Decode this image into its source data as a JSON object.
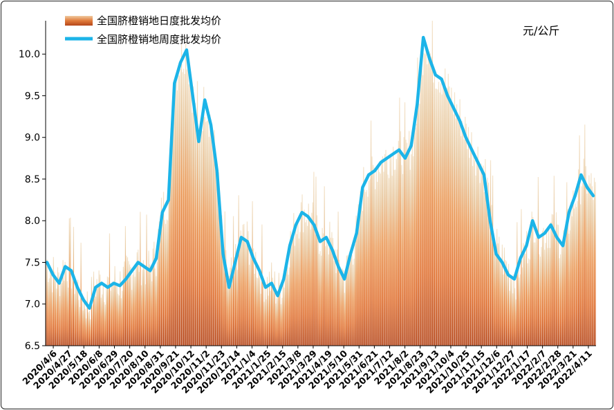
{
  "chart_data": {
    "type": "bar+line",
    "unit_label": "元/公斤",
    "ylim": [
      6.5,
      10.4
    ],
    "yticks": [
      "6.5",
      "7.0",
      "7.5",
      "8.0",
      "8.5",
      "9.0",
      "9.5",
      "10.0"
    ],
    "grid": false,
    "legend_position": "top-left",
    "series": [
      {
        "name": "全国脐橙销地日度批发均价",
        "kind": "bar",
        "color": "#d2691e"
      },
      {
        "name": "全国脐橙销地周度批发均价",
        "kind": "line",
        "color": "#1cb4e8"
      }
    ],
    "x_tick_labels": [
      "2020/4/6",
      "2020/4/27",
      "2020/5/18",
      "2020/6/8",
      "2020/6/29",
      "2020/7/20",
      "2020/8/10",
      "2020/8/31",
      "2020/9/21",
      "2020/10/12",
      "2020/11/2",
      "2020/11/23",
      "2020/12/14",
      "2021/1/4",
      "2021/1/25",
      "2021/2/15",
      "2021/3/8",
      "2021/3/29",
      "2021/4/19",
      "2021/5/10",
      "2021/5/31",
      "2021/6/21",
      "2021/7/12",
      "2021/8/2",
      "2021/8/23",
      "2021/9/13",
      "2021/10/4",
      "2021/10/25",
      "2021/11/15",
      "2021/12/6",
      "2021/12/27",
      "2022/1/17",
      "2022/2/7",
      "2022/2/28",
      "2022/3/21",
      "2022/4/11"
    ],
    "weekly_avg": [
      7.5,
      7.35,
      7.25,
      7.45,
      7.4,
      7.2,
      7.05,
      6.95,
      7.2,
      7.25,
      7.2,
      7.25,
      7.22,
      7.3,
      7.4,
      7.5,
      7.45,
      7.4,
      7.55,
      8.1,
      8.25,
      9.65,
      9.9,
      10.05,
      9.5,
      8.95,
      9.45,
      9.15,
      8.6,
      7.6,
      7.2,
      7.5,
      7.8,
      7.75,
      7.55,
      7.4,
      7.2,
      7.25,
      7.1,
      7.3,
      7.7,
      7.95,
      8.1,
      8.05,
      7.95,
      7.75,
      7.8,
      7.65,
      7.45,
      7.3,
      7.6,
      7.85,
      8.4,
      8.55,
      8.6,
      8.7,
      8.75,
      8.8,
      8.85,
      8.75,
      8.9,
      9.4,
      10.2,
      9.95,
      9.75,
      9.7,
      9.5,
      9.35,
      9.2,
      9.0,
      8.85,
      8.7,
      8.55,
      8.0,
      7.6,
      7.5,
      7.35,
      7.3,
      7.55,
      7.7,
      8.0,
      7.8,
      7.85,
      7.95,
      7.8,
      7.7,
      8.1,
      8.3,
      8.55,
      8.4,
      8.3
    ]
  }
}
